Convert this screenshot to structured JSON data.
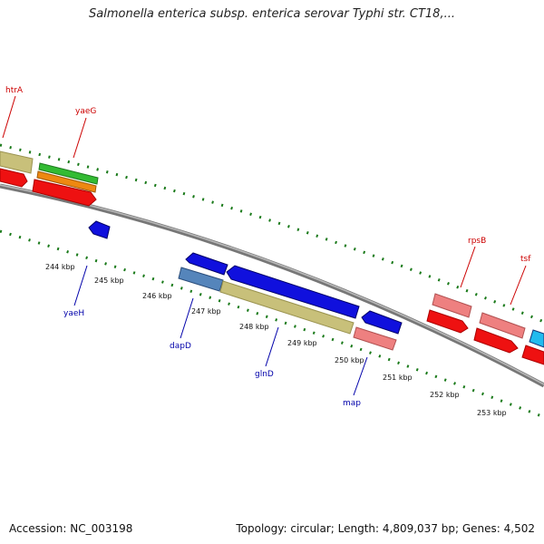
{
  "header": {
    "title": "Salmonella enterica subsp. enterica serovar Typhi str. CT18,..."
  },
  "footer": {
    "accession": "Accession: NC_003198",
    "summary": "Topology: circular; Length: 4,809,037 bp; Genes: 4,502"
  },
  "colors": {
    "backbone": "#888888",
    "tick": "#1a7a1a",
    "label_red": "#cc0000",
    "label_blue": "#0000aa"
  },
  "scale_labels": [
    "244 kbp",
    "245 kbp",
    "246 kbp",
    "247 kbp",
    "248 kbp",
    "249 kbp",
    "250 kbp",
    "251 kbp",
    "252 kbp",
    "253 kbp"
  ],
  "gene_labels": [
    {
      "text": "htrA",
      "strand": "forward"
    },
    {
      "text": "yaeG",
      "strand": "forward"
    },
    {
      "text": "rpsB",
      "strand": "forward"
    },
    {
      "text": "tsf",
      "strand": "forward"
    },
    {
      "text": "yaeH",
      "strand": "reverse"
    },
    {
      "text": "dapD",
      "strand": "reverse"
    },
    {
      "text": "glnD",
      "strand": "reverse"
    },
    {
      "text": "map",
      "strand": "reverse"
    }
  ],
  "feature_colors": {
    "cds_red": "#ee1111",
    "cds_blue": "#1010dd",
    "gene_khaki": "#c8c07a",
    "rna_green": "#33bb33",
    "orange": "#ee8811",
    "pink": "#ee8080",
    "steel": "#5585bb",
    "cyan": "#22bbee"
  }
}
